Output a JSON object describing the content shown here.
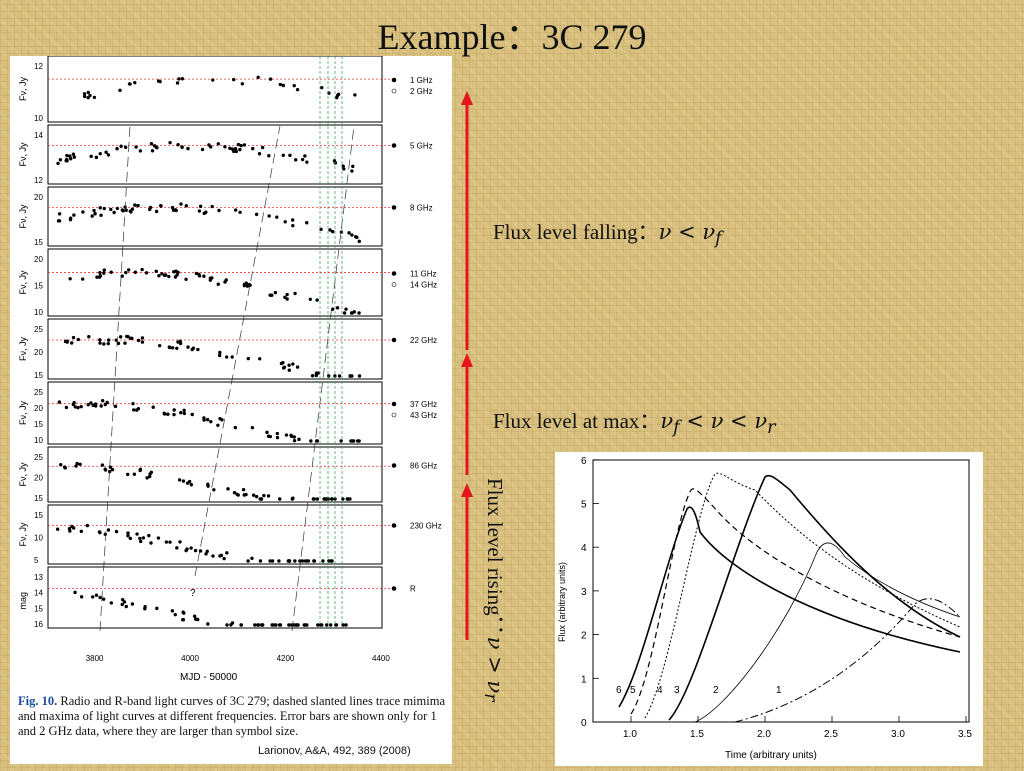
{
  "slide": {
    "title": "Example：3C 279",
    "annotations": {
      "falling_text": "Flux level falling：",
      "falling_math": "ν < ν",
      "falling_sub": "f",
      "max_text": "Flux level at max：",
      "max_math": "ν",
      "max_sub": "f",
      "max_math2": " < ν < ν",
      "max_sub2": "r",
      "rising_text": "Flux level rising：",
      "rising_math": "ν > ν",
      "rising_sub": "r"
    },
    "arrow_color": "#e8141c"
  },
  "light_curves": {
    "x_axis_label": "MJD - 50000",
    "x_ticks": [
      "3800",
      "4000",
      "4200",
      "4400"
    ],
    "panels": [
      {
        "y_label": "Fν, Jy",
        "ticks": [
          "12",
          "10"
        ],
        "legend": [
          "1 GHz",
          "2 GHz"
        ]
      },
      {
        "y_label": "Fν, Jy",
        "ticks": [
          "14",
          "12"
        ],
        "legend": [
          "5 GHz"
        ]
      },
      {
        "y_label": "Fν, Jy",
        "ticks": [
          "20",
          "15"
        ],
        "legend": [
          "8 GHz"
        ]
      },
      {
        "y_label": "Fν, Jy",
        "ticks": [
          "20",
          "15",
          "10"
        ],
        "legend": [
          "11 GHz",
          "14 GHz"
        ]
      },
      {
        "y_label": "Fν, Jy",
        "ticks": [
          "25",
          "20",
          "15"
        ],
        "legend": [
          "22 GHz"
        ]
      },
      {
        "y_label": "Fν, Jy",
        "ticks": [
          "25",
          "20",
          "15",
          "10"
        ],
        "legend": [
          "37 GHz",
          "43 GHz"
        ]
      },
      {
        "y_label": "Fν, Jy",
        "ticks": [
          "25",
          "20",
          "15"
        ],
        "legend": [
          "86 GHz"
        ]
      },
      {
        "y_label": "Fν, Jy",
        "ticks": [
          "15",
          "10",
          "5"
        ],
        "legend": [
          "230 GHz"
        ]
      },
      {
        "y_label": "mag",
        "ticks": [
          "13",
          "14",
          "15",
          "16"
        ],
        "legend": [
          "R"
        ]
      }
    ],
    "question_mark": "?",
    "caption_label": "Fig. 10.",
    "caption_text": " Radio and R-band light curves of 3C 279; dashed slanted lines trace mimima and maxima of light curves at different frequencies. Error bars are shown only for 1 and 2 GHz data, where they are larger than symbol size.",
    "credit": "Larionov, A&A, 492, 389 (2008)"
  },
  "flare_model": {
    "x_axis_label": "Time (arbitrary units)",
    "y_axis_label": "Flux (arbitrary units)",
    "x_ticks": [
      "1.0",
      "1.5",
      "2.0",
      "2.5",
      "3.0",
      "3.5"
    ],
    "y_ticks": [
      "0",
      "1",
      "2",
      "3",
      "4",
      "5",
      "6"
    ],
    "curve_labels": [
      "6",
      "5",
      "4",
      "3",
      "2",
      "1"
    ]
  }
}
